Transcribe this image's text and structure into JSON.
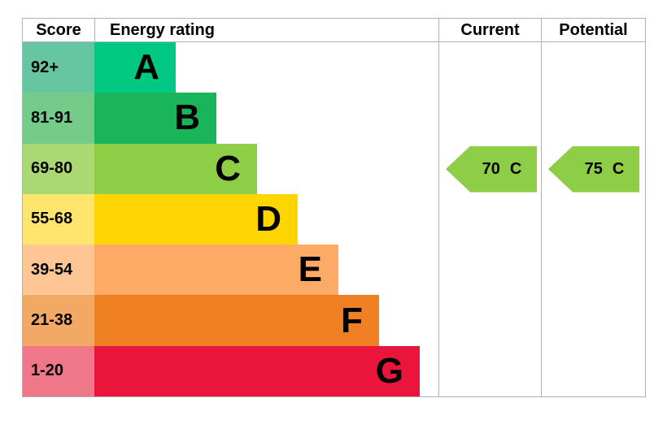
{
  "colors": {
    "border": "#b3b3b3",
    "text": "#000000",
    "background": "#ffffff"
  },
  "header": {
    "score": "Score",
    "energy_rating": "Energy rating",
    "current": "Current",
    "potential": "Potential"
  },
  "chart_data": {
    "type": "bar",
    "subtype": "epc-energy-rating",
    "orientation": "horizontal",
    "title": "Energy rating",
    "legend_position": "none",
    "grid": false,
    "bands": [
      {
        "letter": "A",
        "score_range": "92+",
        "bar_color": "#00c781",
        "score_bg_color": "#65c6a1"
      },
      {
        "letter": "B",
        "score_range": "81-91",
        "bar_color": "#19b459",
        "score_bg_color": "#74cb8a"
      },
      {
        "letter": "C",
        "score_range": "69-80",
        "bar_color": "#8dce46",
        "score_bg_color": "#aad974"
      },
      {
        "letter": "D",
        "score_range": "55-68",
        "bar_color": "#ffd500",
        "score_bg_color": "#ffe46d"
      },
      {
        "letter": "E",
        "score_range": "39-54",
        "bar_color": "#fcaa65",
        "score_bg_color": "#fcc795"
      },
      {
        "letter": "F",
        "score_range": "21-38",
        "bar_color": "#ef8023",
        "score_bg_color": "#f2a966"
      },
      {
        "letter": "G",
        "score_range": "1-20",
        "bar_color": "#e9153b",
        "score_bg_color": "#f0778a"
      }
    ],
    "current": {
      "value": 70,
      "band": "C",
      "arrow_color": "#8dce46"
    },
    "potential": {
      "value": 75,
      "band": "C",
      "arrow_color": "#8dce46"
    }
  }
}
